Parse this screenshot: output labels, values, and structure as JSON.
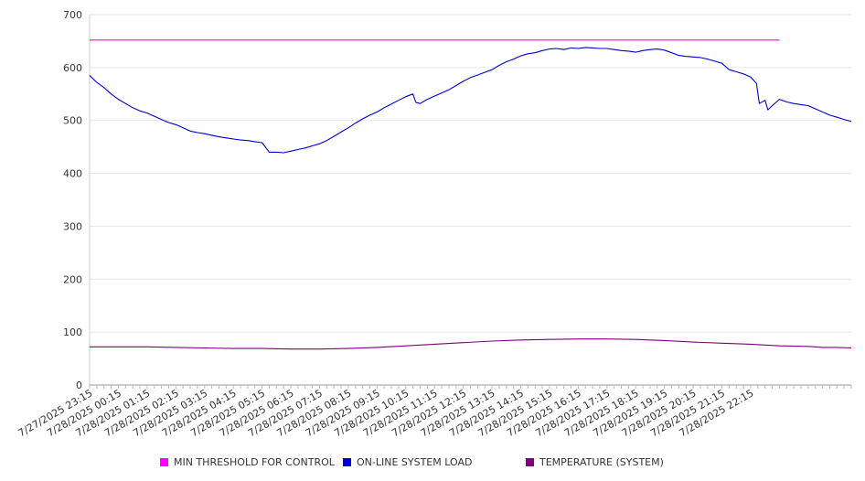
{
  "chart_data": {
    "type": "line",
    "title": "",
    "xlabel": "",
    "ylabel": "",
    "ylim": [
      0,
      700
    ],
    "y_ticks": [
      0,
      100,
      200,
      300,
      400,
      500,
      600,
      700
    ],
    "grid": true,
    "legend_position": "bottom",
    "x_tick_labels": [
      "7/27/2025 23:15",
      "7/28/2025 00:15",
      "7/28/2025 01:15",
      "7/28/2025 02:15",
      "7/28/2025 03:15",
      "7/28/2025 04:15",
      "7/28/2025 05:15",
      "7/28/2025 06:15",
      "7/28/2025 07:15",
      "7/28/2025 08:15",
      "7/28/2025 09:15",
      "7/28/2025 10:15",
      "7/28/2025 11:15",
      "7/28/2025 12:15",
      "7/28/2025 13:15",
      "7/28/2025 14:15",
      "7/28/2025 15:15",
      "7/28/2025 16:15",
      "7/28/2025 17:15",
      "7/28/2025 18:15",
      "7/28/2025 19:15",
      "7/28/2025 20:15",
      "7/28/2025 21:15",
      "7/28/2025 22:15"
    ],
    "series": [
      {
        "name": "MIN THRESHOLD FOR CONTROL",
        "color": "#ff00ff",
        "points": [
          [
            0,
            652
          ],
          [
            24,
            652
          ]
        ]
      },
      {
        "name": "ON-LINE SYSTEM LOAD",
        "color": "#0000cc",
        "points": [
          [
            0,
            585
          ],
          [
            0.25,
            572
          ],
          [
            0.5,
            562
          ],
          [
            0.75,
            550
          ],
          [
            1,
            540
          ],
          [
            1.25,
            532
          ],
          [
            1.5,
            524
          ],
          [
            1.75,
            518
          ],
          [
            2,
            514
          ],
          [
            2.25,
            508
          ],
          [
            2.5,
            502
          ],
          [
            2.75,
            496
          ],
          [
            3,
            492
          ],
          [
            3.25,
            486
          ],
          [
            3.5,
            480
          ],
          [
            3.75,
            477
          ],
          [
            4,
            475
          ],
          [
            4.25,
            472
          ],
          [
            4.5,
            469
          ],
          [
            4.75,
            467
          ],
          [
            5,
            465
          ],
          [
            5.25,
            463
          ],
          [
            5.5,
            462
          ],
          [
            5.75,
            460
          ],
          [
            6,
            458
          ],
          [
            6.25,
            440
          ],
          [
            6.5,
            440
          ],
          [
            6.75,
            439
          ],
          [
            7,
            442
          ],
          [
            7.25,
            445
          ],
          [
            7.5,
            448
          ],
          [
            7.75,
            452
          ],
          [
            8,
            456
          ],
          [
            8.25,
            462
          ],
          [
            8.5,
            470
          ],
          [
            8.75,
            478
          ],
          [
            9,
            486
          ],
          [
            9.25,
            495
          ],
          [
            9.5,
            503
          ],
          [
            9.75,
            510
          ],
          [
            10,
            516
          ],
          [
            10.25,
            524
          ],
          [
            10.5,
            531
          ],
          [
            10.75,
            538
          ],
          [
            11,
            545
          ],
          [
            11.25,
            550
          ],
          [
            11.35,
            534
          ],
          [
            11.5,
            532
          ],
          [
            11.75,
            540
          ],
          [
            12,
            546
          ],
          [
            12.25,
            552
          ],
          [
            12.5,
            558
          ],
          [
            12.75,
            566
          ],
          [
            13,
            574
          ],
          [
            13.25,
            581
          ],
          [
            13.5,
            586
          ],
          [
            13.75,
            591
          ],
          [
            14,
            596
          ],
          [
            14.25,
            604
          ],
          [
            14.5,
            611
          ],
          [
            14.75,
            616
          ],
          [
            15,
            622
          ],
          [
            15.25,
            626
          ],
          [
            15.5,
            628
          ],
          [
            15.75,
            632
          ],
          [
            16,
            635
          ],
          [
            16.25,
            636
          ],
          [
            16.5,
            634
          ],
          [
            16.75,
            637
          ],
          [
            17,
            636
          ],
          [
            17.25,
            638
          ],
          [
            17.5,
            637
          ],
          [
            17.75,
            636
          ],
          [
            18,
            636
          ],
          [
            18.25,
            634
          ],
          [
            18.5,
            632
          ],
          [
            18.75,
            631
          ],
          [
            19,
            629
          ],
          [
            19.25,
            632
          ],
          [
            19.5,
            634
          ],
          [
            19.75,
            635
          ],
          [
            20,
            633
          ],
          [
            20.25,
            628
          ],
          [
            20.5,
            623
          ],
          [
            20.75,
            621
          ],
          [
            21,
            620
          ],
          [
            21.25,
            619
          ],
          [
            21.5,
            616
          ],
          [
            21.75,
            612
          ],
          [
            22,
            608
          ],
          [
            22.25,
            596
          ],
          [
            22.5,
            592
          ],
          [
            22.75,
            588
          ],
          [
            23,
            582
          ],
          [
            23.2,
            570
          ],
          [
            23.3,
            532
          ],
          [
            23.5,
            538
          ],
          [
            23.6,
            520
          ],
          [
            23.75,
            528
          ],
          [
            24,
            540
          ],
          [
            24.25,
            535
          ],
          [
            24.5,
            532
          ],
          [
            24.75,
            530
          ],
          [
            25,
            528
          ],
          [
            25.25,
            522
          ],
          [
            25.5,
            516
          ],
          [
            25.75,
            510
          ],
          [
            26,
            506
          ],
          [
            26.25,
            502
          ],
          [
            26.5,
            498
          ]
        ]
      },
      {
        "name": "TEMPERATURE (SYSTEM)",
        "color": "#800080",
        "points": [
          [
            0,
            72
          ],
          [
            1,
            72
          ],
          [
            2,
            72
          ],
          [
            3,
            71
          ],
          [
            4,
            70
          ],
          [
            5,
            69
          ],
          [
            6,
            69
          ],
          [
            7,
            68
          ],
          [
            8,
            68
          ],
          [
            9,
            69
          ],
          [
            10,
            71
          ],
          [
            11,
            74
          ],
          [
            12,
            77
          ],
          [
            13,
            80
          ],
          [
            14,
            83
          ],
          [
            15,
            85
          ],
          [
            16,
            86
          ],
          [
            17,
            87
          ],
          [
            18,
            87
          ],
          [
            19,
            86
          ],
          [
            20,
            84
          ],
          [
            21,
            81
          ],
          [
            22,
            79
          ],
          [
            23,
            77
          ],
          [
            24,
            74
          ],
          [
            25,
            73
          ],
          [
            25.5,
            71
          ],
          [
            26,
            71
          ],
          [
            26.5,
            70
          ]
        ]
      }
    ]
  }
}
